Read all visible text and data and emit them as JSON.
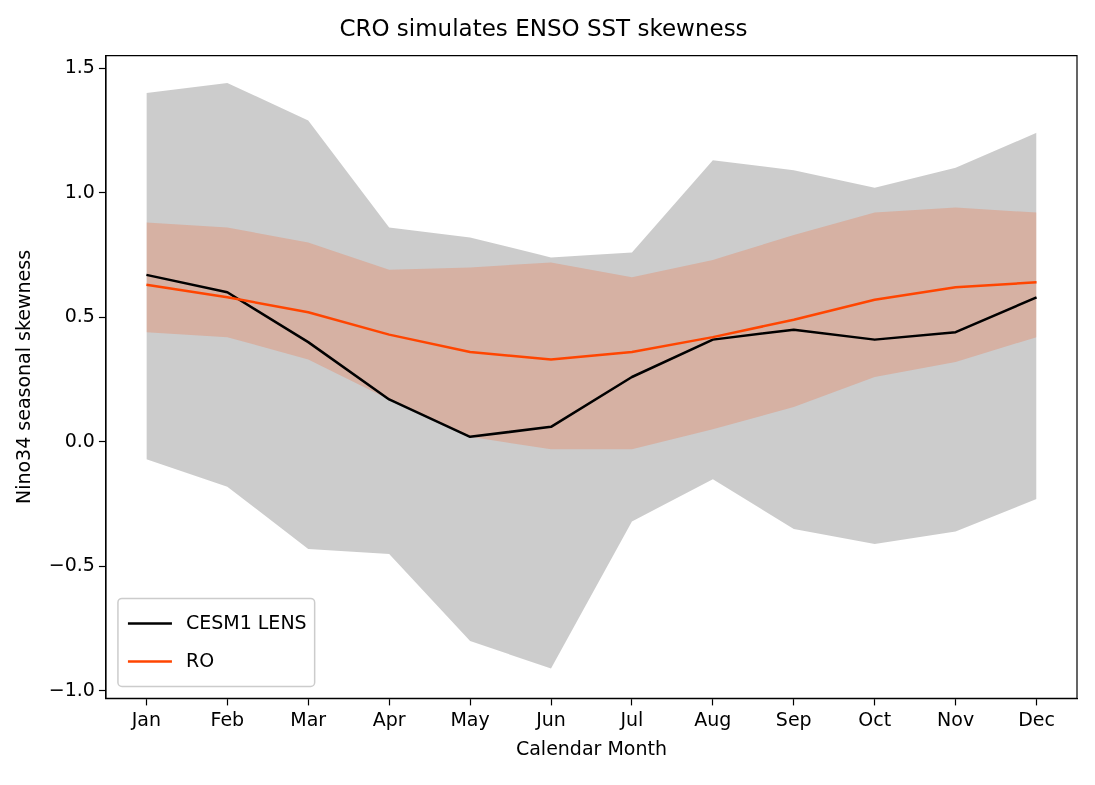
{
  "chart_data": {
    "type": "line",
    "title": "CRO simulates ENSO SST skewness",
    "xlabel": "Calendar Month",
    "ylabel": "Nino34 seasonal skewness",
    "categories": [
      "Jan",
      "Feb",
      "Mar",
      "Apr",
      "May",
      "Jun",
      "Jul",
      "Aug",
      "Sep",
      "Oct",
      "Nov",
      "Dec"
    ],
    "series": [
      {
        "name": "CESM1 LENS",
        "color": "#000000",
        "values": [
          0.67,
          0.6,
          0.4,
          0.17,
          0.02,
          0.06,
          0.26,
          0.41,
          0.45,
          0.41,
          0.44,
          0.58
        ],
        "lower": [
          -0.07,
          -0.18,
          -0.43,
          -0.45,
          -0.8,
          -0.91,
          -0.32,
          -0.15,
          -0.35,
          -0.41,
          -0.36,
          -0.23
        ],
        "upper": [
          1.4,
          1.44,
          1.29,
          0.86,
          0.82,
          0.74,
          0.76,
          1.13,
          1.09,
          1.02,
          1.1,
          1.24
        ]
      },
      {
        "name": "RO",
        "color": "#ff4500",
        "values": [
          0.63,
          0.58,
          0.52,
          0.43,
          0.36,
          0.33,
          0.36,
          0.42,
          0.49,
          0.57,
          0.62,
          0.64
        ],
        "lower": [
          0.44,
          0.42,
          0.33,
          0.17,
          0.02,
          -0.03,
          -0.03,
          0.05,
          0.14,
          0.26,
          0.32,
          0.42
        ],
        "upper": [
          0.88,
          0.86,
          0.8,
          0.69,
          0.7,
          0.72,
          0.66,
          0.73,
          0.83,
          0.92,
          0.94,
          0.92
        ]
      }
    ],
    "ylim": [
      -1.03,
      1.55
    ],
    "yticks": [
      {
        "value": -1.0,
        "label": "−1.0"
      },
      {
        "value": -0.5,
        "label": "−0.5"
      },
      {
        "value": 0.0,
        "label": "0.0"
      },
      {
        "value": 0.5,
        "label": "0.5"
      },
      {
        "value": 1.0,
        "label": "1.0"
      },
      {
        "value": 1.5,
        "label": "1.5"
      }
    ],
    "grid": false,
    "legend": "bottom left",
    "line_style": "solid",
    "marker": "none"
  }
}
